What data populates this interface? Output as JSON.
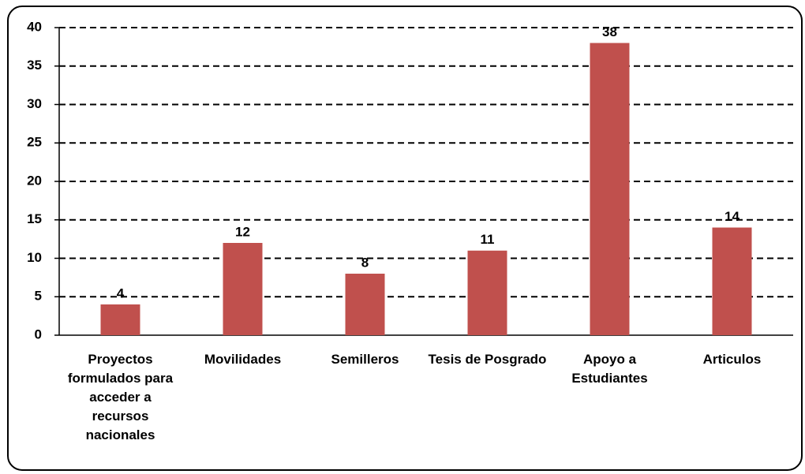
{
  "chart_data": {
    "type": "bar",
    "categories": [
      "Proyectos formulados para acceder a recursos nacionales",
      "Movilidades",
      "Semilleros",
      "Tesis de Posgrado",
      "Apoyo a Estudiantes",
      "Articulos"
    ],
    "values": [
      4,
      12,
      8,
      11,
      38,
      14
    ],
    "color": "#c0504d",
    "ylim": [
      0,
      40
    ],
    "yticks": [
      0,
      5,
      10,
      15,
      20,
      25,
      30,
      35,
      40
    ],
    "grid": true
  }
}
